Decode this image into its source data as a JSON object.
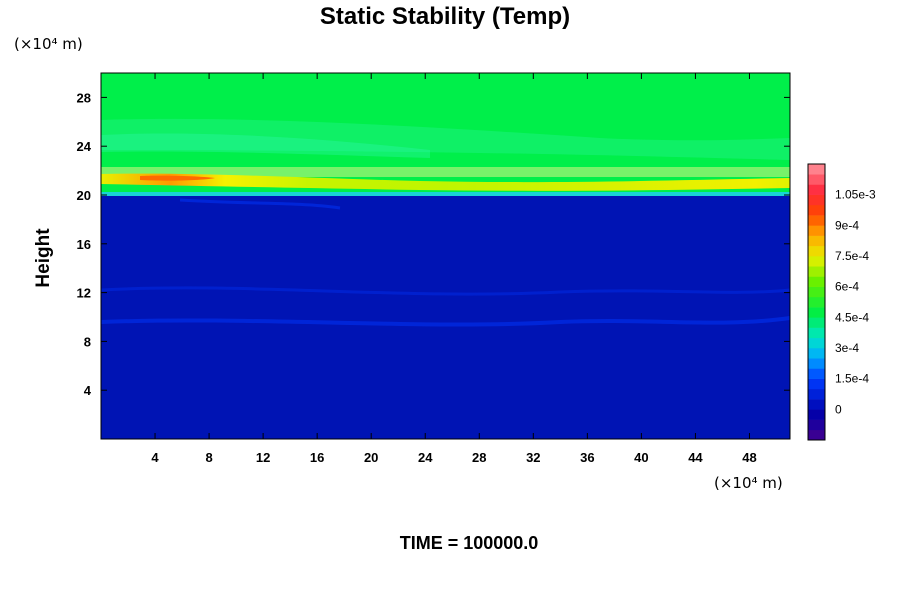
{
  "chart_data": {
    "type": "heatmap",
    "title": "Static Stability (Temp)",
    "xlabel": "",
    "ylabel": "Height",
    "x_unit": "(×10⁴ m)",
    "y_unit": "(×10⁴ m)",
    "xlim": [
      0,
      51
    ],
    "ylim": [
      0,
      30
    ],
    "x_ticks": [
      4,
      8,
      12,
      16,
      20,
      24,
      28,
      32,
      36,
      40,
      44,
      48
    ],
    "y_ticks": [
      4,
      8,
      12,
      16,
      20,
      24,
      28
    ],
    "colorbar": {
      "min": -0.00015,
      "max": 0.0012,
      "levels": 27,
      "tick_values": [
        0,
        0.00015,
        0.0003,
        0.00045,
        0.0006,
        0.00075,
        0.0009,
        0.00105
      ],
      "tick_labels": [
        "0",
        "1.5e-4",
        "3e-4",
        "4.5e-4",
        "6e-4",
        "7.5e-4",
        "9e-4",
        "1.05e-3"
      ]
    },
    "field_regions": [
      {
        "y_range": [
          0,
          19.9
        ],
        "value": 0.0
      },
      {
        "y_range": [
          19.9,
          20.4
        ],
        "value": 0.00025
      },
      {
        "y_range": [
          20.4,
          21.6
        ],
        "value": 0.0007
      },
      {
        "y_range": [
          21.6,
          23.5
        ],
        "value": 0.0005
      },
      {
        "y_range": [
          23.5,
          30
        ],
        "value": 0.00055
      }
    ],
    "annotation": "TIME = 100000.0"
  }
}
